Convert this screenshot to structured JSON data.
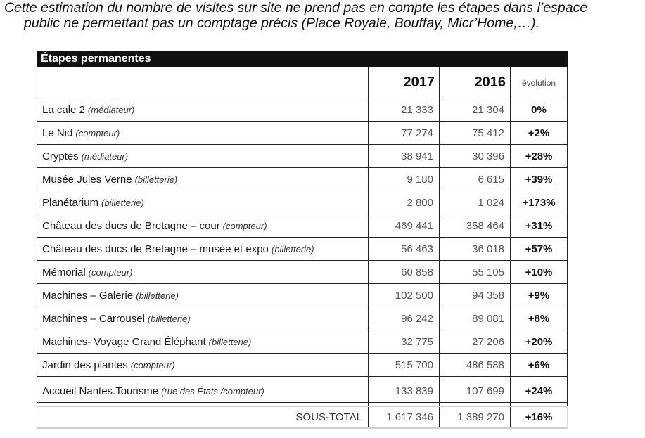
{
  "note": {
    "line1": "Cette estimation du nombre de visites sur site ne prend pas en compte les étapes dans l’espace",
    "line2": "public ne permettant pas un comptage précis (Place Royale, Bouffay, Micr’Home,…)."
  },
  "table": {
    "title": "Étapes permanentes",
    "headers": {
      "y2017": "2017",
      "y2016": "2016",
      "evolution": "évolution"
    },
    "rows": [
      {
        "name": "La cale 2",
        "source": "(médiateur)",
        "v2017": "21 333",
        "v2016": "21 304",
        "evo": "0%"
      },
      {
        "name": "Le Nid",
        "source": "(compteur)",
        "v2017": "77 274",
        "v2016": "75 412",
        "evo": "+2%"
      },
      {
        "name": "Cryptes",
        "source": "(médiateur)",
        "v2017": "38 941",
        "v2016": "30 396",
        "evo": "+28%"
      },
      {
        "name": "Musée Jules Verne",
        "source": "(billetterie)",
        "v2017": "9 180",
        "v2016": "6 615",
        "evo": "+39%"
      },
      {
        "name": "Planétarium",
        "source": "(billetterie)",
        "v2017": "2 800",
        "v2016": "1 024",
        "evo": "+173%"
      },
      {
        "name": "Château des ducs de Bretagne – cour",
        "source": "(compteur)",
        "v2017": "469 441",
        "v2016": "358 464",
        "evo": "+31%"
      },
      {
        "name": "Château des ducs de Bretagne – musée et expo",
        "source": "(billetterie)",
        "v2017": "56 463",
        "v2016": "36 018",
        "evo": "+57%"
      },
      {
        "name": "Mémorial",
        "source": "(compteur)",
        "v2017": "60 858",
        "v2016": "55 105",
        "evo": "+10%"
      },
      {
        "name": "Machines – Galerie",
        "source": "(billetterie)",
        "v2017": "102 500",
        "v2016": "94 358",
        "evo": "+9%"
      },
      {
        "name": "Machines – Carrousel",
        "source": "(billetterie)",
        "v2017": "96 242",
        "v2016": "89 081",
        "evo": "+8%"
      },
      {
        "name": "Machines- Voyage Grand Éléphant",
        "source": "(billetterie)",
        "v2017": "32 775",
        "v2016": "27 206",
        "evo": "+20%"
      },
      {
        "name": "Jardin des plantes",
        "source": "(compteur)",
        "v2017": "515 700",
        "v2016": "486 588",
        "evo": "+6%"
      }
    ],
    "accueil": {
      "name": "Accueil Nantes.Tourisme",
      "source": "(rue des États /compteur)",
      "v2017": "133 839",
      "v2016": "107 699",
      "evo": "+24%"
    },
    "total": {
      "label": "SOUS-TOTAL",
      "v2017": "1 617 346",
      "v2016": "1 389 270",
      "evo": "+16%"
    }
  }
}
